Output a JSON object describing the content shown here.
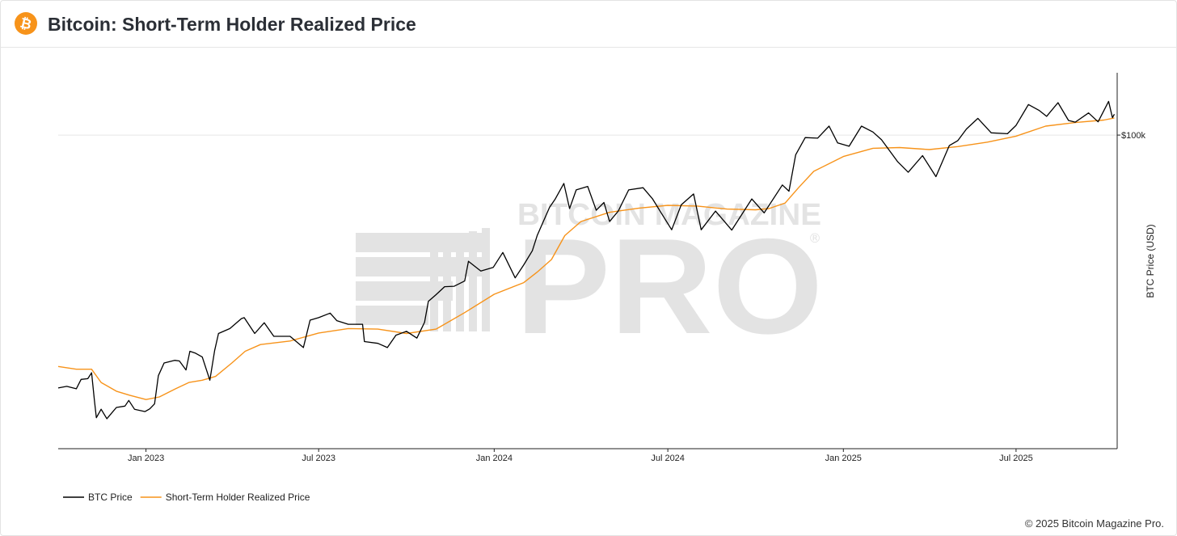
{
  "header": {
    "title": "Bitcoin: Short-Term Holder Realized Price",
    "logo_icon": "bitcoin-logo-icon"
  },
  "watermark": {
    "top": "BITCOIN MAGAZINE",
    "main": "PRO",
    "mark": "®"
  },
  "footer": {
    "copyright": "© 2025 Bitcoin Magazine Pro."
  },
  "colors": {
    "btc_price": "#000000",
    "sth_realized_price": "#f7931a",
    "logo": "#f7931a",
    "watermark": "#e3e3e3"
  },
  "chart_data": {
    "type": "line",
    "title": "Bitcoin: Short-Term Holder Realized Price",
    "ylabel": "BTC Price (USD)",
    "yscale": "log",
    "ylim": [
      13000,
      150000
    ],
    "xlim": [
      "2022-10-01",
      "2025-10-15"
    ],
    "x_ticks": [
      "Jan 2023",
      "Jul 2023",
      "Jan 2024",
      "Jul 2024",
      "Jan 2025",
      "Jul 2025"
    ],
    "x_tick_dates": [
      "2023-01-01",
      "2023-07-01",
      "2024-01-01",
      "2024-07-01",
      "2025-01-01",
      "2025-07-01"
    ],
    "y_ticks": [
      "$100k"
    ],
    "y_tick_values": [
      100000
    ],
    "grid": true,
    "legend": "bottom-left",
    "series": [
      {
        "name": "BTC Price",
        "points": [
          [
            "2022-10-01",
            19300
          ],
          [
            "2022-10-10",
            19500
          ],
          [
            "2022-10-20",
            19200
          ],
          [
            "2022-10-25",
            20400
          ],
          [
            "2022-11-01",
            20500
          ],
          [
            "2022-11-05",
            21300
          ],
          [
            "2022-11-08",
            17800
          ],
          [
            "2022-11-10",
            15900
          ],
          [
            "2022-11-15",
            16800
          ],
          [
            "2022-11-21",
            15800
          ],
          [
            "2022-12-01",
            17000
          ],
          [
            "2022-12-10",
            17150
          ],
          [
            "2022-12-14",
            17800
          ],
          [
            "2022-12-20",
            16800
          ],
          [
            "2022-12-31",
            16550
          ],
          [
            "2023-01-05",
            16850
          ],
          [
            "2023-01-10",
            17400
          ],
          [
            "2023-01-14",
            20900
          ],
          [
            "2023-01-20",
            22700
          ],
          [
            "2023-01-31",
            23100
          ],
          [
            "2023-02-05",
            23000
          ],
          [
            "2023-02-12",
            21700
          ],
          [
            "2023-02-16",
            24500
          ],
          [
            "2023-02-22",
            24200
          ],
          [
            "2023-03-01",
            23600
          ],
          [
            "2023-03-09",
            20300
          ],
          [
            "2023-03-14",
            24600
          ],
          [
            "2023-03-18",
            27500
          ],
          [
            "2023-03-30",
            28400
          ],
          [
            "2023-04-11",
            30300
          ],
          [
            "2023-04-14",
            30500
          ],
          [
            "2023-04-25",
            27500
          ],
          [
            "2023-05-05",
            29500
          ],
          [
            "2023-05-15",
            27000
          ],
          [
            "2023-06-01",
            27000
          ],
          [
            "2023-06-15",
            25100
          ],
          [
            "2023-06-22",
            30000
          ],
          [
            "2023-07-01",
            30500
          ],
          [
            "2023-07-13",
            31400
          ],
          [
            "2023-07-20",
            29900
          ],
          [
            "2023-08-01",
            29200
          ],
          [
            "2023-08-16",
            29200
          ],
          [
            "2023-08-18",
            26100
          ],
          [
            "2023-09-01",
            25800
          ],
          [
            "2023-09-11",
            25100
          ],
          [
            "2023-09-20",
            27200
          ],
          [
            "2023-10-01",
            27900
          ],
          [
            "2023-10-12",
            26700
          ],
          [
            "2023-10-20",
            29600
          ],
          [
            "2023-10-24",
            33900
          ],
          [
            "2023-11-01",
            35400
          ],
          [
            "2023-11-10",
            37300
          ],
          [
            "2023-11-20",
            37400
          ],
          [
            "2023-12-01",
            38700
          ],
          [
            "2023-12-05",
            44000
          ],
          [
            "2023-12-18",
            41300
          ],
          [
            "2023-12-31",
            42300
          ],
          [
            "2024-01-10",
            46600
          ],
          [
            "2024-01-23",
            39500
          ],
          [
            "2024-02-01",
            43000
          ],
          [
            "2024-02-10",
            47100
          ],
          [
            "2024-02-15",
            52000
          ],
          [
            "2024-02-28",
            62500
          ],
          [
            "2024-03-05",
            66000
          ],
          [
            "2024-03-14",
            73000
          ],
          [
            "2024-03-20",
            62000
          ],
          [
            "2024-03-27",
            70000
          ],
          [
            "2024-04-08",
            71600
          ],
          [
            "2024-04-17",
            61300
          ],
          [
            "2024-04-25",
            64500
          ],
          [
            "2024-05-01",
            57000
          ],
          [
            "2024-05-10",
            61000
          ],
          [
            "2024-05-21",
            70000
          ],
          [
            "2024-06-05",
            71000
          ],
          [
            "2024-06-15",
            66000
          ],
          [
            "2024-06-24",
            60300
          ],
          [
            "2024-07-05",
            54000
          ],
          [
            "2024-07-15",
            63500
          ],
          [
            "2024-07-28",
            68200
          ],
          [
            "2024-08-05",
            54000
          ],
          [
            "2024-08-20",
            61000
          ],
          [
            "2024-09-06",
            53900
          ],
          [
            "2024-09-27",
            66000
          ],
          [
            "2024-10-10",
            60300
          ],
          [
            "2024-10-29",
            72300
          ],
          [
            "2024-11-05",
            69400
          ],
          [
            "2024-11-12",
            88000
          ],
          [
            "2024-11-22",
            98400
          ],
          [
            "2024-12-05",
            98000
          ],
          [
            "2024-12-17",
            106000
          ],
          [
            "2024-12-26",
            95000
          ],
          [
            "2025-01-07",
            93000
          ],
          [
            "2025-01-20",
            106000
          ],
          [
            "2025-02-01",
            102000
          ],
          [
            "2025-02-10",
            97000
          ],
          [
            "2025-02-27",
            84000
          ],
          [
            "2025-03-10",
            78500
          ],
          [
            "2025-03-25",
            87500
          ],
          [
            "2025-04-08",
            76300
          ],
          [
            "2025-04-22",
            93400
          ],
          [
            "2025-05-01",
            96500
          ],
          [
            "2025-05-10",
            104000
          ],
          [
            "2025-05-22",
            111500
          ],
          [
            "2025-06-05",
            101500
          ],
          [
            "2025-06-22",
            100900
          ],
          [
            "2025-07-01",
            106500
          ],
          [
            "2025-07-14",
            122000
          ],
          [
            "2025-07-25",
            117500
          ],
          [
            "2025-08-02",
            113000
          ],
          [
            "2025-08-14",
            123500
          ],
          [
            "2025-08-25",
            110000
          ],
          [
            "2025-09-01",
            108800
          ],
          [
            "2025-09-15",
            115500
          ],
          [
            "2025-09-25",
            109000
          ],
          [
            "2025-10-06",
            124500
          ],
          [
            "2025-10-10",
            112000
          ],
          [
            "2025-10-12",
            114500
          ]
        ]
      },
      {
        "name": "Short-Term Holder Realized Price",
        "points": [
          [
            "2022-10-01",
            22200
          ],
          [
            "2022-10-20",
            21800
          ],
          [
            "2022-11-05",
            21800
          ],
          [
            "2022-11-15",
            20000
          ],
          [
            "2022-12-01",
            18900
          ],
          [
            "2022-12-15",
            18400
          ],
          [
            "2023-01-01",
            17900
          ],
          [
            "2023-01-15",
            18200
          ],
          [
            "2023-02-01",
            19200
          ],
          [
            "2023-02-15",
            20000
          ],
          [
            "2023-03-01",
            20300
          ],
          [
            "2023-03-15",
            20800
          ],
          [
            "2023-04-01",
            22700
          ],
          [
            "2023-04-15",
            24500
          ],
          [
            "2023-05-01",
            25600
          ],
          [
            "2023-06-01",
            26200
          ],
          [
            "2023-07-01",
            27600
          ],
          [
            "2023-08-01",
            28400
          ],
          [
            "2023-09-01",
            28300
          ],
          [
            "2023-10-01",
            27500
          ],
          [
            "2023-11-01",
            28300
          ],
          [
            "2023-12-01",
            31500
          ],
          [
            "2024-01-01",
            35500
          ],
          [
            "2024-02-01",
            38300
          ],
          [
            "2024-02-15",
            41000
          ],
          [
            "2024-03-01",
            44500
          ],
          [
            "2024-03-15",
            52000
          ],
          [
            "2024-04-01",
            57000
          ],
          [
            "2024-05-01",
            60500
          ],
          [
            "2024-06-01",
            62200
          ],
          [
            "2024-07-01",
            63300
          ],
          [
            "2024-08-01",
            63000
          ],
          [
            "2024-09-01",
            61800
          ],
          [
            "2024-10-01",
            61500
          ],
          [
            "2024-10-15",
            62000
          ],
          [
            "2024-11-01",
            64300
          ],
          [
            "2024-11-15",
            71000
          ],
          [
            "2024-12-01",
            79000
          ],
          [
            "2025-01-01",
            87000
          ],
          [
            "2025-02-01",
            91800
          ],
          [
            "2025-03-01",
            92200
          ],
          [
            "2025-04-01",
            91000
          ],
          [
            "2025-05-01",
            92800
          ],
          [
            "2025-06-01",
            95500
          ],
          [
            "2025-07-01",
            99300
          ],
          [
            "2025-08-01",
            106000
          ],
          [
            "2025-09-01",
            108500
          ],
          [
            "2025-10-01",
            110300
          ],
          [
            "2025-10-12",
            111800
          ]
        ]
      }
    ]
  }
}
